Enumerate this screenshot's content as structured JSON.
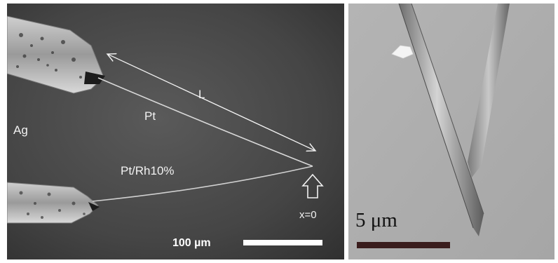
{
  "left_panel": {
    "labels": {
      "length": "L",
      "pt_wire": "Pt",
      "ag": "Ag",
      "pt_rh_wire": "Pt/Rh10%",
      "origin": "x=0"
    },
    "scale_bar_label": "100 µm"
  },
  "right_panel": {
    "scale_bar_label": "5 μm"
  }
}
